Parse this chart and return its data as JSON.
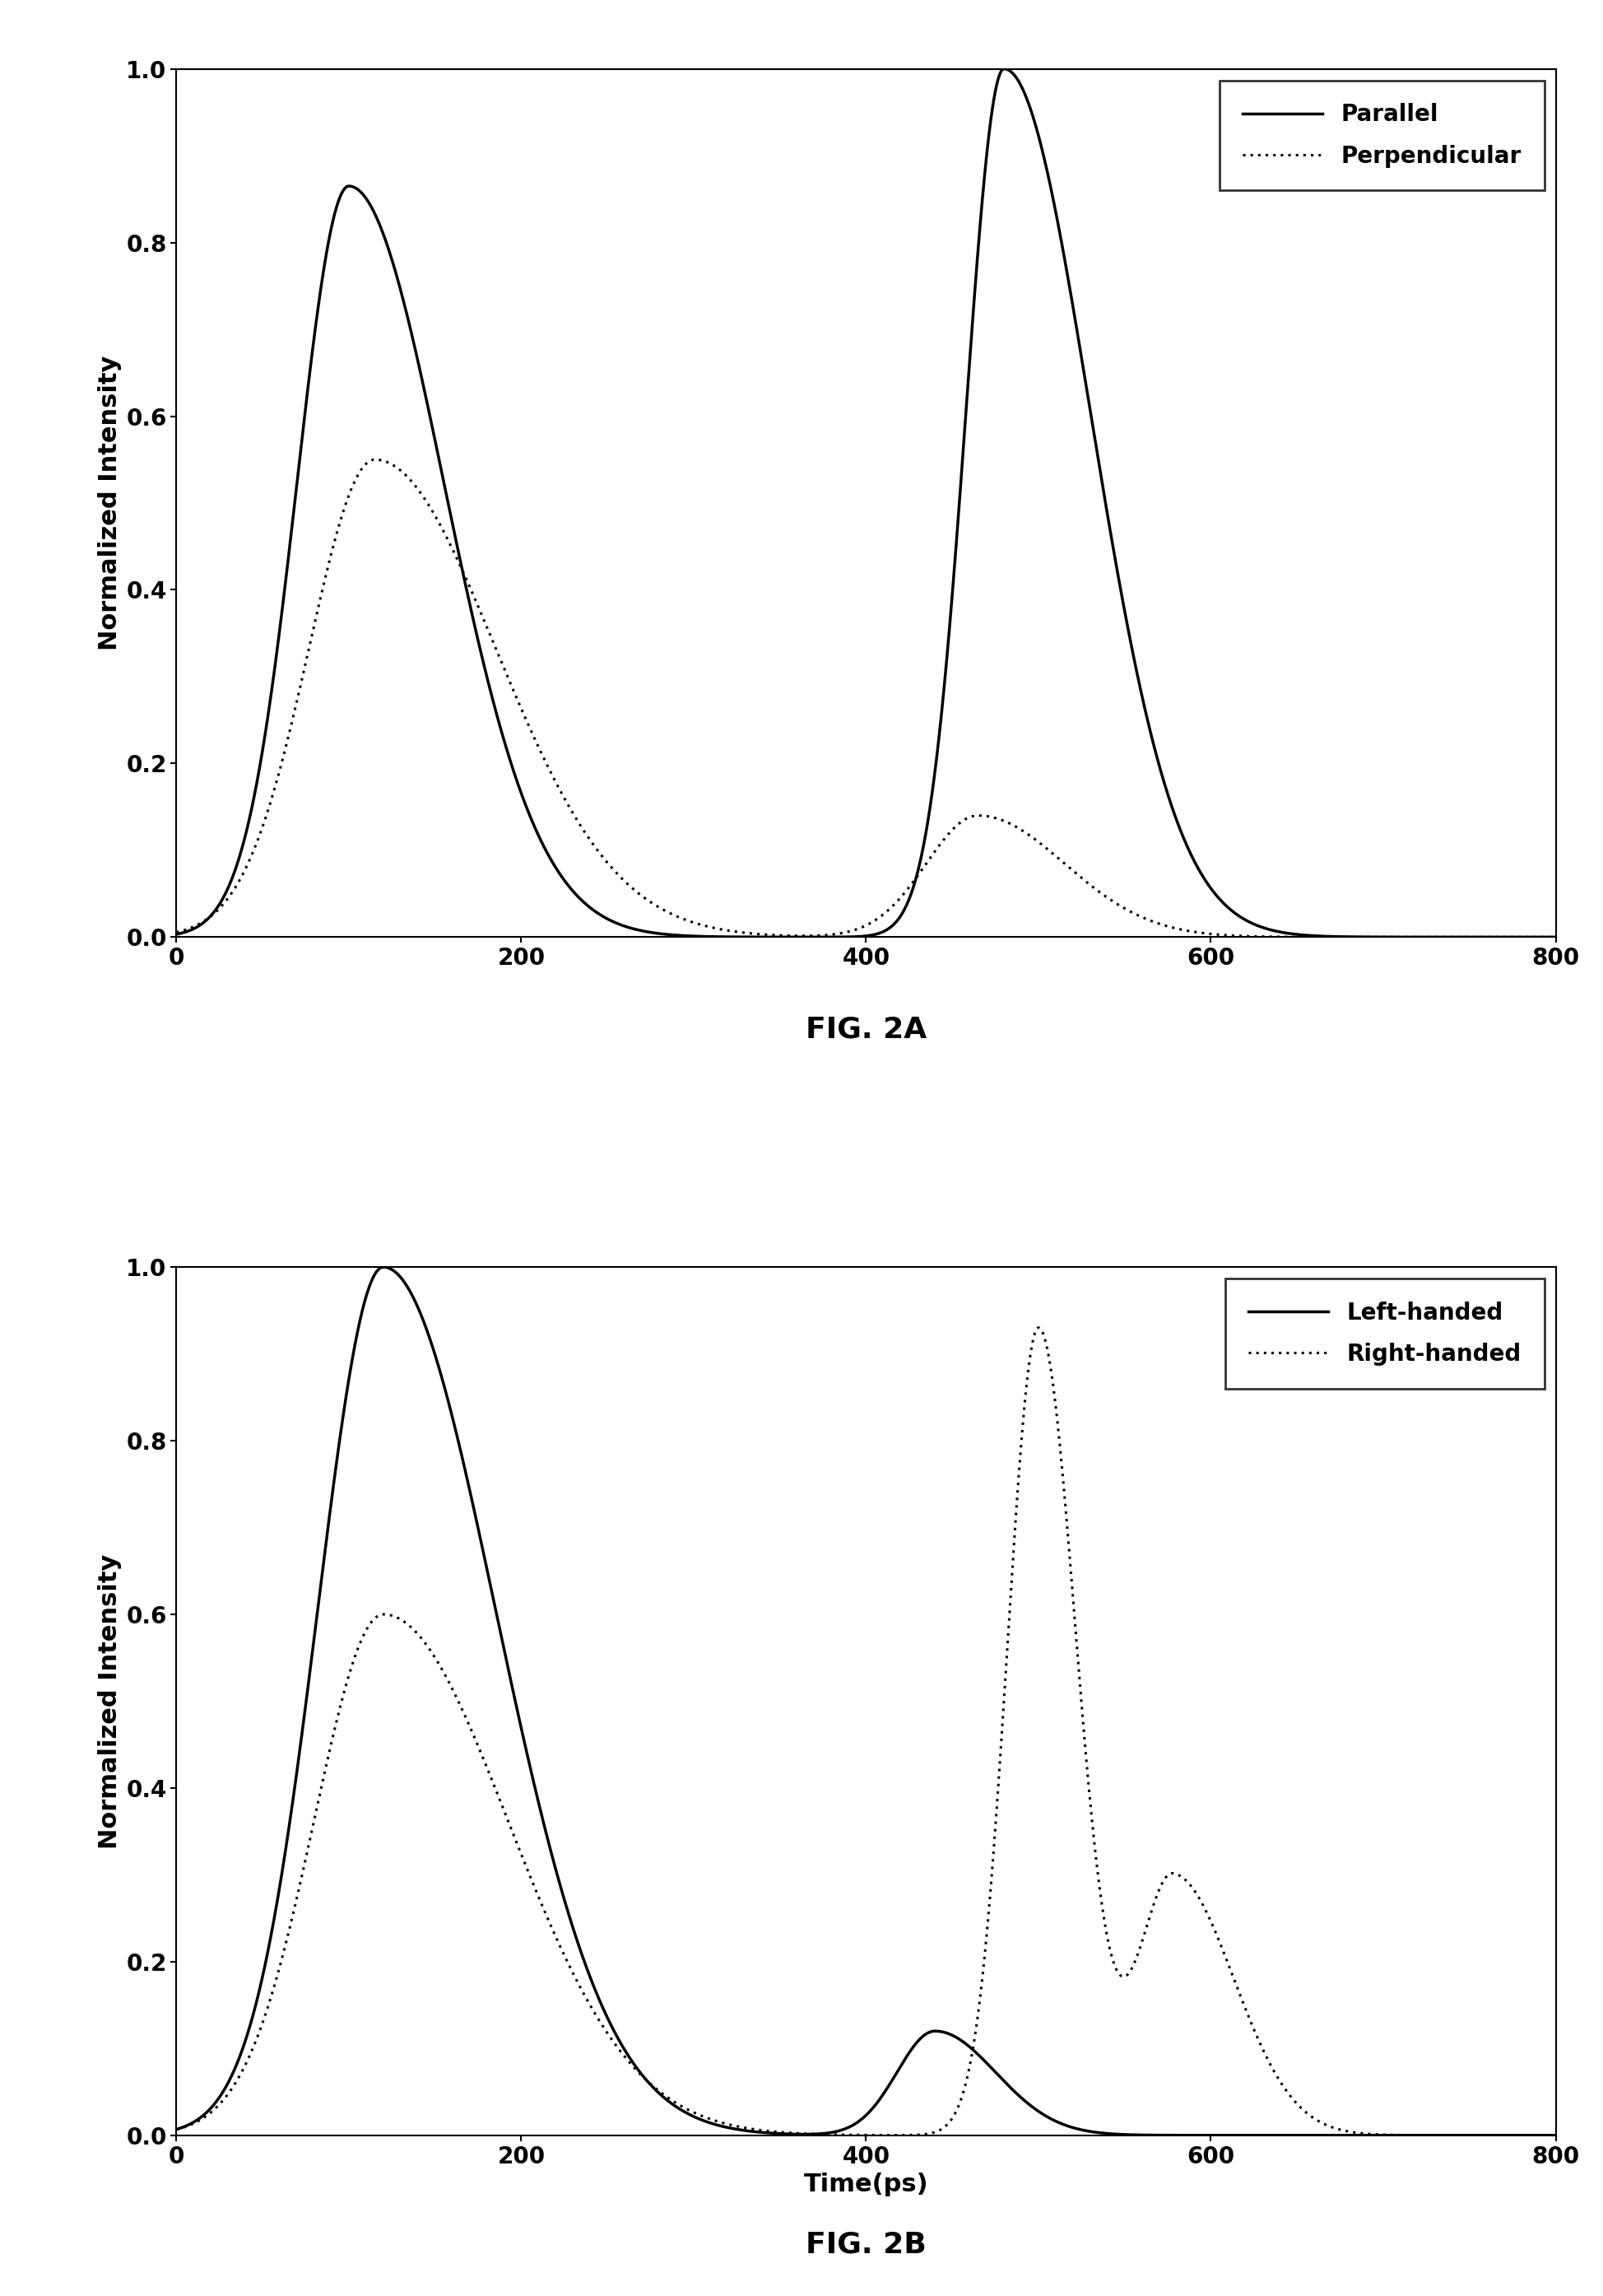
{
  "fig2a": {
    "title": "FIG. 2A",
    "ylabel": "Normalized Intensity",
    "xlim": [
      0,
      800
    ],
    "ylim": [
      0.0,
      1.0
    ],
    "xticks": [
      0,
      200,
      400,
      600,
      800
    ],
    "yticks": [
      0.0,
      0.2,
      0.4,
      0.6,
      0.8,
      1.0
    ],
    "legend_labels": [
      "Parallel",
      "Perpendicular"
    ]
  },
  "fig2b": {
    "title": "FIG. 2B",
    "xlabel": "Time(ps)",
    "ylabel": "Normalized Intensity",
    "xlim": [
      0,
      800
    ],
    "ylim": [
      0.0,
      1.0
    ],
    "xticks": [
      0,
      200,
      400,
      600,
      800
    ],
    "yticks": [
      0.0,
      0.2,
      0.4,
      0.6,
      0.8,
      1.0
    ],
    "legend_labels": [
      "Left-handed",
      "Right-handed"
    ]
  },
  "line_color": "#000000",
  "background_color": "#ffffff",
  "title_fontsize": 26,
  "label_fontsize": 22,
  "tick_fontsize": 20,
  "legend_fontsize": 20,
  "linewidth": 2.5,
  "dotted_linewidth": 2.2
}
